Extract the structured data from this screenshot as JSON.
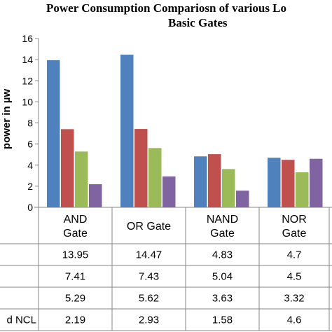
{
  "chart_data": {
    "type": "bar",
    "title": "Power Consumption Compariosn of various Lo",
    "title_line2": "Basic Gates",
    "ylabel": "power in µw",
    "ylim": [
      0,
      16
    ],
    "yticks": [
      "0",
      "2",
      "4",
      "6",
      "8",
      "10",
      "12",
      "14",
      "16"
    ],
    "categories": [
      [
        "AND",
        "Gate"
      ],
      [
        "OR Gate"
      ],
      [
        "NAND",
        "Gate"
      ],
      [
        "NOR",
        "Gate"
      ]
    ],
    "series": [
      {
        "color": "#4f81bd",
        "values": [
          13.95,
          14.47,
          4.83,
          4.7
        ],
        "labels": [
          "13.95",
          "14.47",
          "4.83",
          "4.7"
        ]
      },
      {
        "color": "#c0504d",
        "values": [
          7.41,
          7.43,
          5.04,
          4.5
        ],
        "labels": [
          "7.41",
          "7.43",
          "5.04",
          "4.5"
        ]
      },
      {
        "color": "#9bbb59",
        "values": [
          5.29,
          5.62,
          3.63,
          3.32
        ],
        "labels": [
          "5.29",
          "5.62",
          "3.63",
          "3.32"
        ]
      },
      {
        "name": "d NCL",
        "color": "#8064a2",
        "values": [
          2.19,
          2.93,
          1.58,
          4.6
        ],
        "labels": [
          "2.19",
          "2.93",
          "1.58",
          "4.6"
        ]
      }
    ],
    "grid": false,
    "legend": "table-below"
  }
}
